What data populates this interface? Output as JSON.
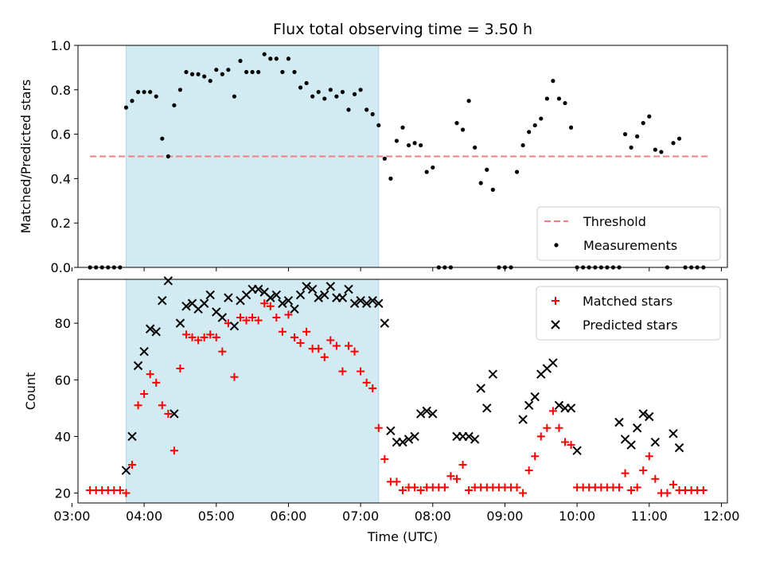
{
  "chart_data": [
    {
      "type": "scatter",
      "title": "Flux total observing time = 3.50 h",
      "ylabel": "Matched/Predicted stars",
      "xlabel": "",
      "ylim": [
        0.0,
        1.0
      ],
      "xlim": [
        "03:05",
        "12:05"
      ],
      "x_ticks": [
        "03:00",
        "04:00",
        "05:00",
        "06:00",
        "07:00",
        "08:00",
        "09:00",
        "10:00",
        "11:00",
        "12:00"
      ],
      "y_ticks": [
        "0.0",
        "0.2",
        "0.4",
        "0.6",
        "0.8",
        "1.0"
      ],
      "observing_window": {
        "start": "03:45",
        "end": "07:15",
        "color": "#add8e6"
      },
      "threshold": {
        "name": "Threshold",
        "value": 0.5,
        "x_range": [
          "03:15",
          "11:50"
        ],
        "color": "#f08080"
      },
      "series": [
        {
          "name": "Measurements",
          "color": "#000000",
          "marker": "dot",
          "x": [
            "03:15",
            "03:20",
            "03:25",
            "03:30",
            "03:35",
            "03:40",
            "03:45",
            "03:50",
            "03:55",
            "04:00",
            "04:05",
            "04:10",
            "04:15",
            "04:20",
            "04:25",
            "04:30",
            "04:35",
            "04:40",
            "04:45",
            "04:50",
            "04:55",
            "05:00",
            "05:05",
            "05:10",
            "05:15",
            "05:20",
            "05:25",
            "05:30",
            "05:35",
            "05:40",
            "05:45",
            "05:50",
            "05:55",
            "06:00",
            "06:05",
            "06:10",
            "06:15",
            "06:20",
            "06:25",
            "06:30",
            "06:35",
            "06:40",
            "06:45",
            "06:50",
            "06:55",
            "07:00",
            "07:05",
            "07:10",
            "07:15",
            "07:20",
            "07:25",
            "07:30",
            "07:35",
            "07:40",
            "07:45",
            "07:50",
            "07:55",
            "08:00",
            "08:05",
            "08:10",
            "08:15",
            "08:20",
            "08:25",
            "08:30",
            "08:35",
            "08:40",
            "08:45",
            "08:50",
            "08:55",
            "09:00",
            "09:05",
            "09:10",
            "09:15",
            "09:20",
            "09:25",
            "09:30",
            "09:35",
            "09:40",
            "09:45",
            "09:50",
            "09:55",
            "10:00",
            "10:05",
            "10:10",
            "10:15",
            "10:20",
            "10:25",
            "10:30",
            "10:35",
            "10:40",
            "10:45",
            "10:50",
            "10:55",
            "11:00",
            "11:05",
            "11:10",
            "11:15",
            "11:20",
            "11:25",
            "11:30",
            "11:35",
            "11:40",
            "11:45"
          ],
          "y": [
            0,
            0,
            0,
            0,
            0,
            0,
            0.72,
            0.75,
            0.79,
            0.79,
            0.79,
            0.77,
            0.58,
            0.5,
            0.73,
            0.8,
            0.88,
            0.87,
            0.87,
            0.86,
            0.84,
            0.89,
            0.87,
            0.89,
            0.77,
            0.93,
            0.88,
            0.88,
            0.88,
            0.96,
            0.94,
            0.94,
            0.88,
            0.94,
            0.88,
            0.81,
            0.83,
            0.77,
            0.79,
            0.76,
            0.8,
            0.77,
            0.79,
            0.71,
            0.78,
            0.8,
            0.71,
            0.69,
            0.64,
            0.49,
            0.4,
            0.57,
            0.63,
            0.55,
            0.56,
            0.55,
            0.43,
            0.45,
            0,
            0,
            0,
            0.65,
            0.62,
            0.75,
            0.54,
            0.38,
            0.44,
            0.35,
            0,
            0,
            0,
            0.43,
            0.55,
            0.61,
            0.64,
            0.67,
            0.76,
            0.84,
            0.76,
            0.74,
            0.63,
            0,
            0,
            0,
            0,
            0,
            0,
            0,
            0,
            0.6,
            0.54,
            0.59,
            0.65,
            0.68,
            0.53,
            0.52,
            0,
            0.56,
            0.58,
            0,
            0,
            0,
            0
          ]
        }
      ],
      "legend": {
        "position": "lower-right",
        "entries": [
          "Threshold",
          "Measurements"
        ]
      }
    },
    {
      "type": "scatter",
      "title": "",
      "ylabel": "Count",
      "xlabel": "Time (UTC)",
      "ylim": [
        16.5,
        95.5
      ],
      "xlim": [
        "03:05",
        "12:05"
      ],
      "x_ticks": [
        "03:00",
        "04:00",
        "05:00",
        "06:00",
        "07:00",
        "08:00",
        "09:00",
        "10:00",
        "11:00",
        "12:00"
      ],
      "y_ticks": [
        "20",
        "40",
        "60",
        "80"
      ],
      "observing_window": {
        "start": "03:45",
        "end": "07:15",
        "color": "#add8e6"
      },
      "series": [
        {
          "name": "Matched stars",
          "color": "#ff0000",
          "marker": "plus",
          "x": [
            "03:15",
            "03:20",
            "03:25",
            "03:30",
            "03:35",
            "03:40",
            "03:45",
            "03:50",
            "03:55",
            "04:00",
            "04:05",
            "04:10",
            "04:15",
            "04:20",
            "04:25",
            "04:30",
            "04:35",
            "04:40",
            "04:45",
            "04:50",
            "04:55",
            "05:00",
            "05:05",
            "05:10",
            "05:15",
            "05:20",
            "05:25",
            "05:30",
            "05:35",
            "05:40",
            "05:45",
            "05:50",
            "05:55",
            "06:00",
            "06:05",
            "06:10",
            "06:15",
            "06:20",
            "06:25",
            "06:30",
            "06:35",
            "06:40",
            "06:45",
            "06:50",
            "06:55",
            "07:00",
            "07:05",
            "07:10",
            "07:15",
            "07:20",
            "07:25",
            "07:30",
            "07:35",
            "07:40",
            "07:45",
            "07:50",
            "07:55",
            "08:00",
            "08:05",
            "08:10",
            "08:15",
            "08:20",
            "08:25",
            "08:30",
            "08:35",
            "08:40",
            "08:45",
            "08:50",
            "08:55",
            "09:00",
            "09:05",
            "09:10",
            "09:15",
            "09:20",
            "09:25",
            "09:30",
            "09:35",
            "09:40",
            "09:45",
            "09:50",
            "09:55",
            "10:00",
            "10:05",
            "10:10",
            "10:15",
            "10:20",
            "10:25",
            "10:30",
            "10:35",
            "10:40",
            "10:45",
            "10:50",
            "10:55",
            "11:00",
            "11:05",
            "11:10",
            "11:15",
            "11:20",
            "11:25",
            "11:30",
            "11:35",
            "11:40",
            "11:45"
          ],
          "y": [
            21,
            21,
            21,
            21,
            21,
            21,
            20,
            30,
            51,
            55,
            62,
            59,
            51,
            48,
            35,
            64,
            76,
            75,
            74,
            75,
            76,
            75,
            70,
            80,
            61,
            82,
            81,
            82,
            81,
            87,
            86,
            82,
            77,
            83,
            75,
            73,
            77,
            71,
            71,
            68,
            74,
            72,
            63,
            72,
            70,
            63,
            59,
            57,
            43,
            32,
            24,
            24,
            21,
            22,
            22,
            21,
            22,
            22,
            22,
            22,
            26,
            25,
            30,
            21,
            22,
            22,
            22,
            22,
            22,
            22,
            22,
            22,
            20,
            28,
            33,
            40,
            43,
            49,
            43,
            38,
            37,
            22,
            22,
            22,
            22,
            22,
            22,
            22,
            22,
            27,
            21,
            22,
            28,
            33,
            25,
            20,
            20,
            23,
            21,
            21,
            21,
            21,
            21
          ]
        },
        {
          "name": "Predicted stars",
          "color": "#000000",
          "marker": "x",
          "x": [
            "03:45",
            "03:50",
            "03:55",
            "04:00",
            "04:05",
            "04:10",
            "04:15",
            "04:20",
            "04:25",
            "04:30",
            "04:35",
            "04:40",
            "04:45",
            "04:50",
            "04:55",
            "05:00",
            "05:05",
            "05:10",
            "05:15",
            "05:20",
            "05:25",
            "05:30",
            "05:35",
            "05:40",
            "05:45",
            "05:50",
            "05:55",
            "06:00",
            "06:05",
            "06:10",
            "06:15",
            "06:20",
            "06:25",
            "06:30",
            "06:35",
            "06:40",
            "06:45",
            "06:50",
            "06:55",
            "07:00",
            "07:05",
            "07:10",
            "07:15",
            "07:20",
            "07:25",
            "07:30",
            "07:35",
            "07:40",
            "07:45",
            "07:50",
            "07:55",
            "08:00",
            "08:20",
            "08:25",
            "08:30",
            "08:35",
            "08:40",
            "08:45",
            "08:50",
            "09:15",
            "09:20",
            "09:25",
            "09:30",
            "09:35",
            "09:40",
            "09:45",
            "09:50",
            "09:55",
            "10:00",
            "10:35",
            "10:40",
            "10:45",
            "10:50",
            "10:55",
            "11:00",
            "11:05",
            "11:20",
            "11:25"
          ],
          "y": [
            28,
            40,
            65,
            70,
            78,
            77,
            88,
            95,
            48,
            80,
            86,
            87,
            85,
            87,
            90,
            84,
            82,
            89,
            79,
            88,
            90,
            92,
            92,
            91,
            89,
            90,
            87,
            88,
            85,
            90,
            93,
            92,
            89,
            90,
            93,
            89,
            89,
            92,
            87,
            88,
            87,
            88,
            87,
            80,
            42,
            38,
            38,
            39,
            40,
            48,
            49,
            48,
            40,
            40,
            40,
            39,
            57,
            50,
            62,
            46,
            51,
            54,
            62,
            64,
            66,
            51,
            50,
            50,
            35,
            45,
            39,
            37,
            43,
            48,
            47,
            38,
            41,
            36
          ]
        }
      ],
      "legend": {
        "position": "top-right",
        "entries": [
          "Matched stars",
          "Predicted stars"
        ]
      }
    }
  ]
}
